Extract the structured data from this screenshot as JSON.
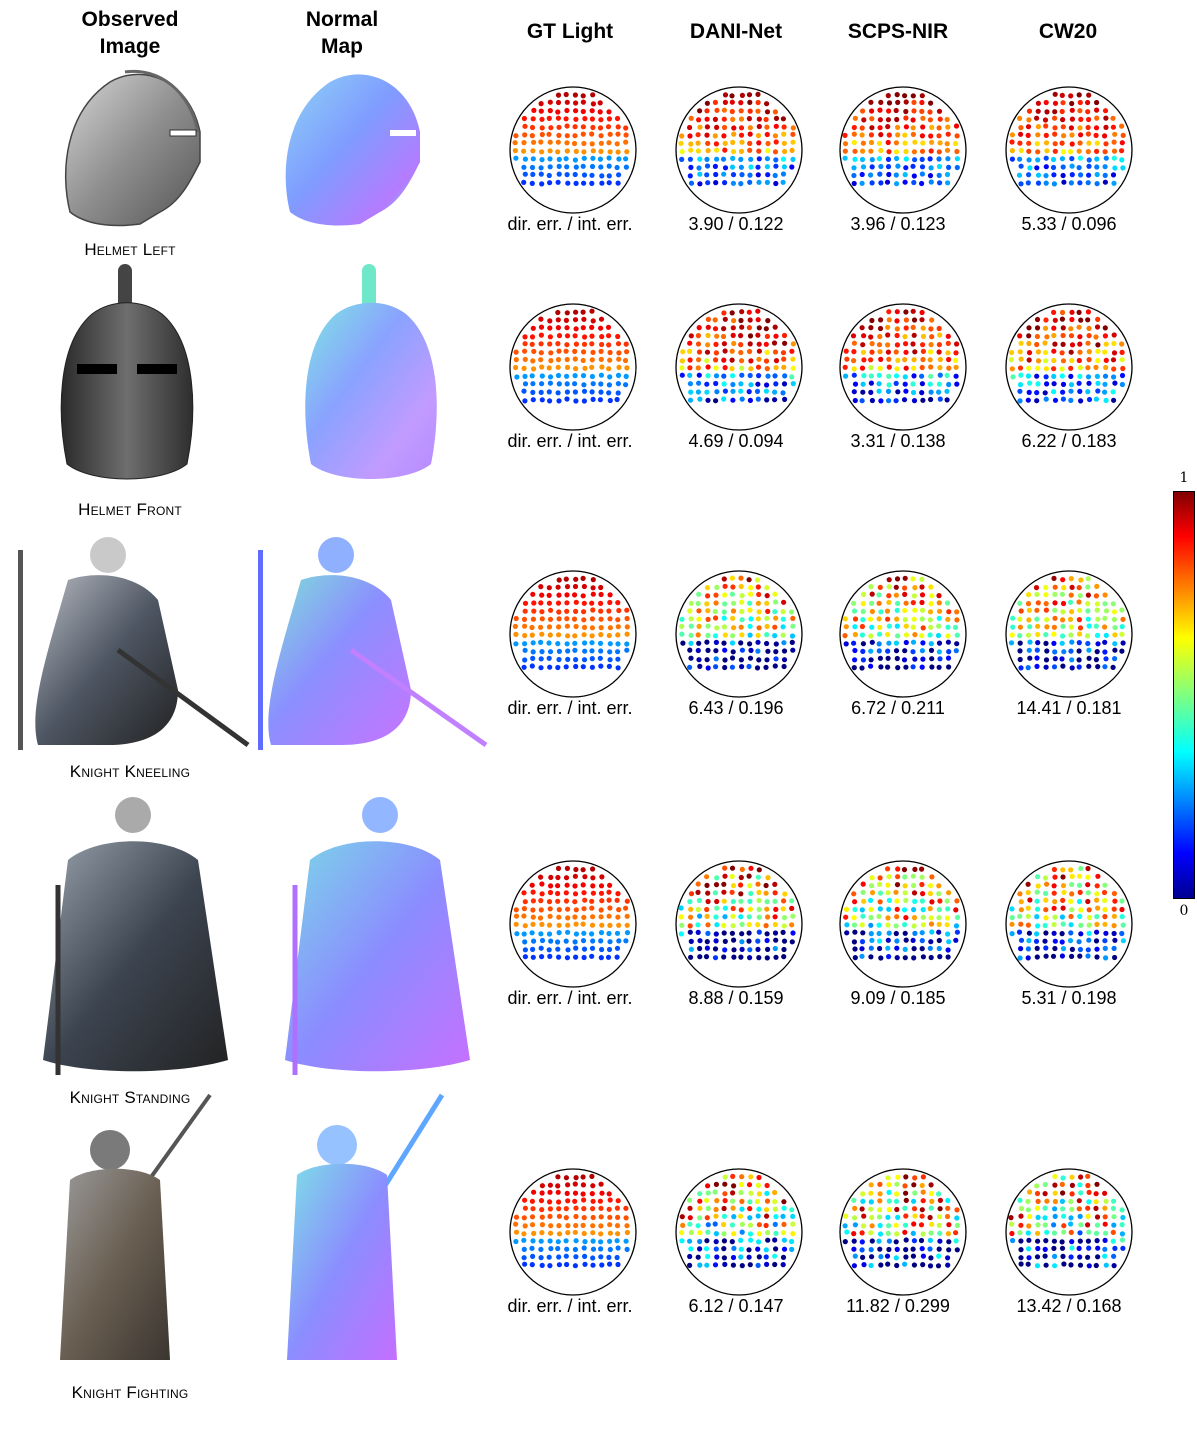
{
  "headers": {
    "observed": "Observed\nImage",
    "normal": "Normal\nMap",
    "gt": "GT Light",
    "dani": "DANI-Net",
    "scps": "SCPS-NIR",
    "cw": "CW20"
  },
  "rows": [
    {
      "label": "Helmet Left",
      "gt_err": "dir. err. / int. err.",
      "dani_err": "3.90 / 0.122",
      "scps_err": "3.96 / 0.123",
      "cw_err": "5.33 / 0.096"
    },
    {
      "label": "Helmet Front",
      "gt_err": "dir. err. / int. err.",
      "dani_err": "4.69 / 0.094",
      "scps_err": "3.31 / 0.138",
      "cw_err": "6.22 / 0.183"
    },
    {
      "label": "Knight Kneeling",
      "gt_err": "dir. err. / int. err.",
      "dani_err": "6.43 / 0.196",
      "scps_err": "6.72 / 0.211",
      "cw_err": "14.41 / 0.181"
    },
    {
      "label": "Knight Standing",
      "gt_err": "dir. err. / int. err.",
      "dani_err": "8.88 / 0.159",
      "scps_err": "9.09 / 0.185",
      "cw_err": "5.31 / 0.198"
    },
    {
      "label": "Knight Fighting",
      "gt_err": "dir. err. / int. err.",
      "dani_err": "6.12 / 0.147",
      "scps_err": "11.82 / 0.299",
      "cw_err": "13.42 / 0.168"
    }
  ],
  "colorbar": {
    "max": "1",
    "min": "0"
  }
}
